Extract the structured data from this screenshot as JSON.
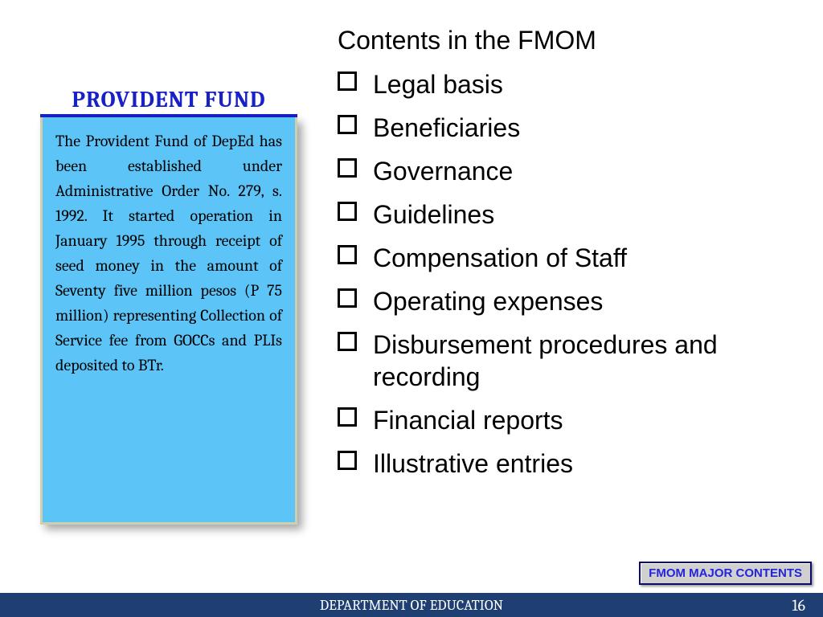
{
  "colors": {
    "title_blue": "#1820c8",
    "box_bg": "#5cc4f7",
    "footer_bg": "#1f3f73",
    "footer_text": "#ffffff",
    "badge_bg": "#d0d0d0",
    "badge_text": "#2424d8",
    "badge_border": "#0a0a6a"
  },
  "left": {
    "title": "PROVIDENT FUND",
    "body": "The Provident Fund of DepEd has been established under Administrative Order No.  279, s. 1992. It started operation in January 1995 through receipt of seed money in the amount of Seventy five million pesos (P 75 million) representing Collection of Service fee from GOCCs and PLIs deposited to BTr."
  },
  "right": {
    "heading": "Contents in the FMOM",
    "items": [
      "Legal basis",
      "Beneficiaries",
      "Governance",
      "Guidelines",
      "Compensation of Staff",
      "Operating expenses",
      "Disbursement procedures and recording",
      "Financial reports",
      "Illustrative entries"
    ]
  },
  "badge": {
    "label": "FMOM MAJOR CONTENTS"
  },
  "footer": {
    "center": "DEPARTMENT OF EDUCATION",
    "page": "16"
  }
}
